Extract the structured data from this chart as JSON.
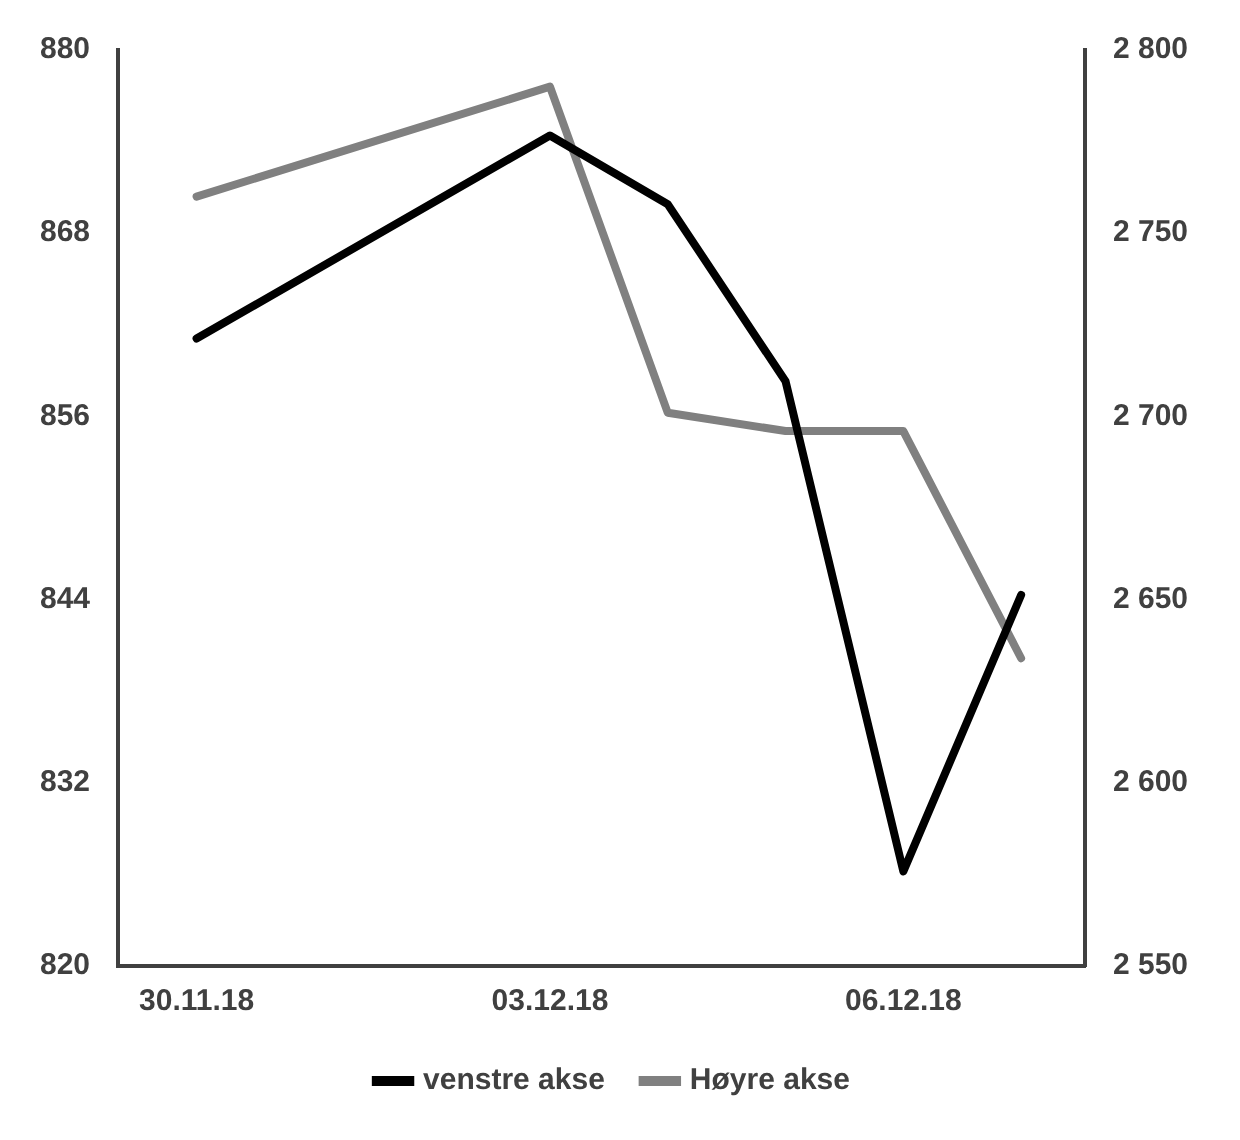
{
  "chart_data": {
    "type": "line",
    "x": [
      "2018-11-30",
      "2018-12-03",
      "2018-12-04",
      "2018-12-05",
      "2018-12-06",
      "2018-12-07"
    ],
    "series": [
      {
        "name": "venstre akse",
        "color": "#000000",
        "values": [
          861.1,
          874.4,
          869.9,
          858.3,
          826.2,
          844.3
        ]
      },
      {
        "name": "Høyre akse",
        "color": "#808080",
        "axis": "y2",
        "values": [
          2760,
          2790,
          2701,
          2696,
          2696,
          2634
        ]
      }
    ],
    "xlim": [
      "2018-11-29T08:00",
      "2018-12-07T13:00"
    ],
    "xticks": [
      {
        "value": "2018-11-30",
        "label": "30.11.18"
      },
      {
        "value": "2018-12-03",
        "label": "03.12.18"
      },
      {
        "value": "2018-12-06",
        "label": "06.12.18"
      }
    ],
    "ylim": [
      820,
      880
    ],
    "yticks": [
      820,
      832,
      844,
      856,
      868,
      880
    ],
    "y2lim": [
      2550,
      2800
    ],
    "y2ticks": [
      {
        "value": 2550,
        "label": "2 550"
      },
      {
        "value": 2600,
        "label": "2 600"
      },
      {
        "value": 2650,
        "label": "2 650"
      },
      {
        "value": 2700,
        "label": "2 700"
      },
      {
        "value": 2750,
        "label": "2 750"
      },
      {
        "value": 2800,
        "label": "2 800"
      }
    ],
    "grid": false,
    "legend": "bottom",
    "marker": "none",
    "line_style": "solid"
  }
}
